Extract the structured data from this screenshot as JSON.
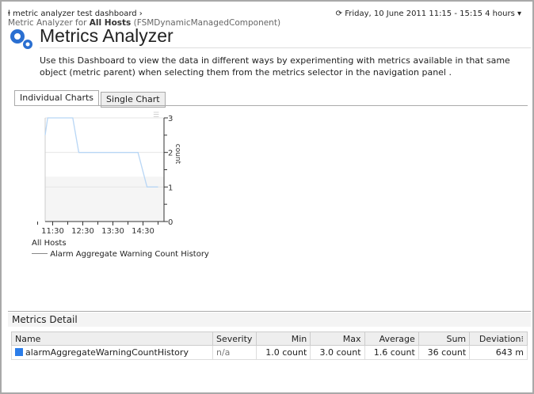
{
  "header": {
    "breadcrumb": "metric analyzer test dashboard",
    "subtitle_prefix": "Metric Analyzer for ",
    "subtitle_bold": "All Hosts",
    "subtitle_suffix": " (FSMDynamicManagedComponent)",
    "time_range": "Friday, 10 June 2011 11:15 - 15:15 4 hours",
    "title": "Metrics Analyzer",
    "description": "Use this Dashboard to view the data in different ways by experimenting with metrics available in that same object (metric parent) when selecting them from the metrics selector in the navigation panel ."
  },
  "tabs": [
    {
      "label": "Individual Charts",
      "active": true
    },
    {
      "label": "Single Chart",
      "active": false
    }
  ],
  "chart_data": {
    "type": "line",
    "host": "All Hosts",
    "ylabel": "count",
    "ylim": [
      0,
      3
    ],
    "yticks": [
      "0",
      "1",
      "2",
      "3"
    ],
    "xticks": [
      "11:30",
      "12:30",
      "13:30",
      "14:30"
    ],
    "xlim": [
      "11:15",
      "15:15"
    ],
    "series": [
      {
        "name": "Alarm Aggregate Warning Count History",
        "color": "#b8d6f5",
        "points": [
          [
            "11:15",
            2.5
          ],
          [
            "11:20",
            3
          ],
          [
            "12:10",
            3
          ],
          [
            "12:22",
            2
          ],
          [
            "14:20",
            2
          ],
          [
            "14:38",
            1
          ],
          [
            "15:00",
            1
          ]
        ]
      }
    ]
  },
  "metrics_detail": {
    "title": "Metrics Detail",
    "columns": [
      "Name",
      "Severity",
      "Min",
      "Max",
      "Average",
      "Sum",
      "Deviation"
    ],
    "rows": [
      {
        "name": "alarmAggregateWarningCountHistory",
        "severity": "n/a",
        "min": "1.0 count",
        "max": "3.0 count",
        "average": "1.6 count",
        "sum": "36 count",
        "deviation": "643 m",
        "color": "#2b7de9"
      }
    ]
  }
}
